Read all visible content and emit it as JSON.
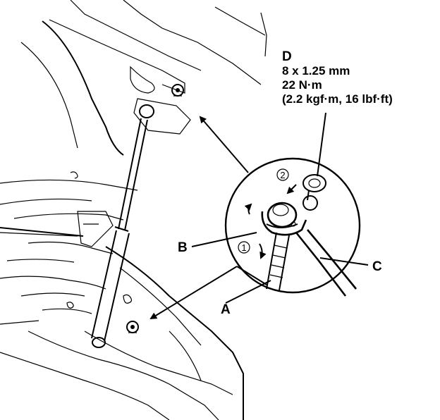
{
  "labels": {
    "a": "A",
    "b": "B",
    "c": "C",
    "d": "D"
  },
  "spec": {
    "line1": "8 x 1.25 mm",
    "line2": "22 N·m",
    "line3": "(2.2 kgf·m, 16 lbf·ft)"
  },
  "steps": {
    "step1": "1",
    "step2": "2"
  }
}
